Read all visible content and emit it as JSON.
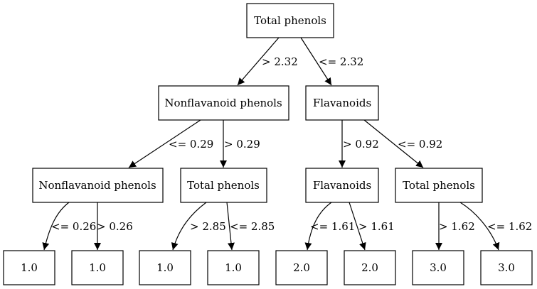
{
  "tree": {
    "nodes": {
      "n0": "Total phenols",
      "n1": "Nonflavanoid phenols",
      "n2": "Flavanoids",
      "n3": "Nonflavanoid phenols",
      "n4": "Total phenols",
      "n5": "Flavanoids",
      "n6": "Total phenols",
      "l1": "1.0",
      "l2": "1.0",
      "l3": "1.0",
      "l4": "1.0",
      "l5": "2.0",
      "l6": "2.0",
      "l7": "3.0",
      "l8": "3.0"
    },
    "edges": {
      "e0_1": "> 2.32",
      "e0_2": "<= 2.32",
      "e1_3": "<= 0.29",
      "e1_4": "> 0.29",
      "e2_5": "> 0.92",
      "e2_6": "<= 0.92",
      "e3_l1": "<= 0.26",
      "e3_l2": "> 0.26",
      "e4_l3": "> 2.85",
      "e4_l4": "<= 2.85",
      "e5_l5": "<= 1.61",
      "e5_l6": "> 1.61",
      "e6_l7": "> 1.62",
      "e6_l8": "<= 1.62"
    }
  }
}
